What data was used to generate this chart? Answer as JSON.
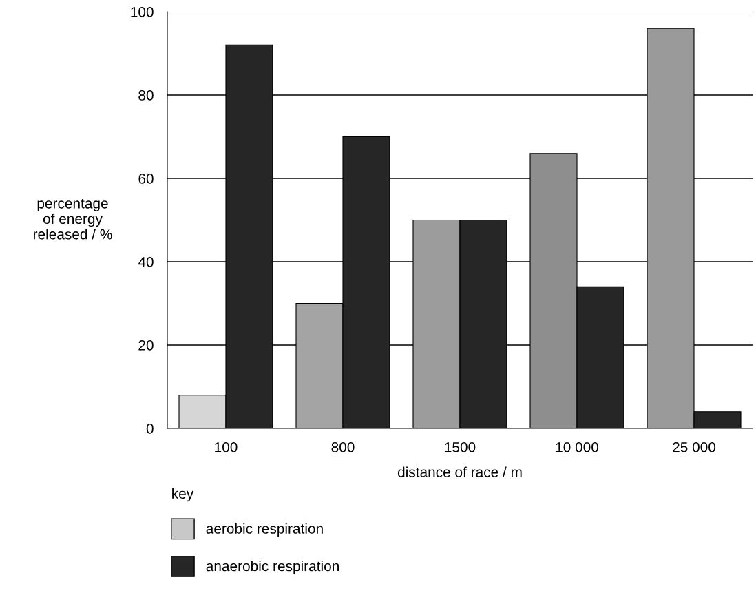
{
  "chart_data": {
    "type": "bar",
    "xlabel": "distance of race / m",
    "ylabel": "percentage\nof energy\nreleased / %",
    "categories": [
      "100",
      "800",
      "1500",
      "10 000",
      "25 000"
    ],
    "series": [
      {
        "name": "aerobic respiration",
        "color": "#c8c8c8",
        "colors": [
          "#d6d6d6",
          "#a4a4a4",
          "#9c9c9c",
          "#8e8e8e",
          "#9a9a9a"
        ],
        "values": [
          8,
          30,
          50,
          66,
          96
        ]
      },
      {
        "name": "anaerobic respiration",
        "color": "#262626",
        "values": [
          92,
          70,
          50,
          34,
          4
        ]
      }
    ],
    "ylim": [
      0,
      100
    ],
    "yticks": [
      0,
      20,
      40,
      60,
      80,
      100
    ],
    "grid": "y",
    "legend": "bottom left",
    "legend_title": "key"
  }
}
